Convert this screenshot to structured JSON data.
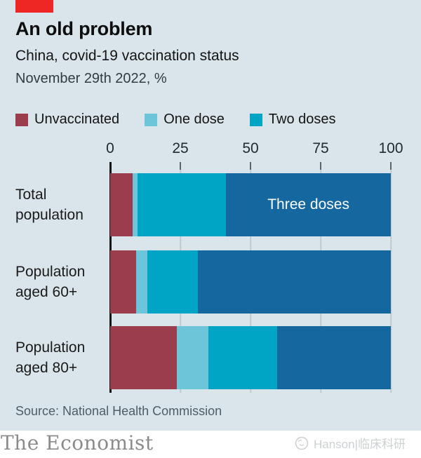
{
  "header": {
    "title": "An old problem",
    "subtitle": "China, covid-19 vaccination status",
    "date_note": "November 29th 2022, %"
  },
  "legend": {
    "items": [
      {
        "label": "Unvaccinated",
        "color": "#9b3d4c"
      },
      {
        "label": "One dose",
        "color": "#6cc5d8"
      },
      {
        "label": "Two doses",
        "color": "#00a4c4"
      }
    ]
  },
  "chart_data": {
    "type": "bar",
    "orientation": "horizontal",
    "stacked": true,
    "categories": [
      "Total population",
      "Population aged 60+",
      "Population aged 80+"
    ],
    "series": [
      {
        "name": "Unvaccinated",
        "color": "#9b3d4c",
        "values": [
          8.0,
          9.3,
          23.8
        ]
      },
      {
        "name": "One dose",
        "color": "#6cc5d8",
        "values": [
          1.8,
          4.0,
          11.2
        ]
      },
      {
        "name": "Two doses",
        "color": "#00a4c4",
        "values": [
          31.5,
          18.0,
          24.5
        ]
      },
      {
        "name": "Three doses",
        "color": "#15689f",
        "values": [
          58.7,
          68.7,
          40.5
        ]
      }
    ],
    "annotation": {
      "text": "Three doses",
      "row": 0,
      "series_index": 3
    },
    "xticks": [
      0,
      25,
      50,
      75,
      100
    ],
    "xlim": [
      0,
      100
    ],
    "grid": true,
    "legend_position": "top"
  },
  "colors": {
    "background": "#d9e5eb",
    "red_tab": "#ee2624",
    "axis": "#14171a",
    "gridline": "#bfcad0"
  },
  "footer": {
    "source": "Source: National Health Commission",
    "brand": "The Economist",
    "watermark": "Hanson|临床科研"
  }
}
